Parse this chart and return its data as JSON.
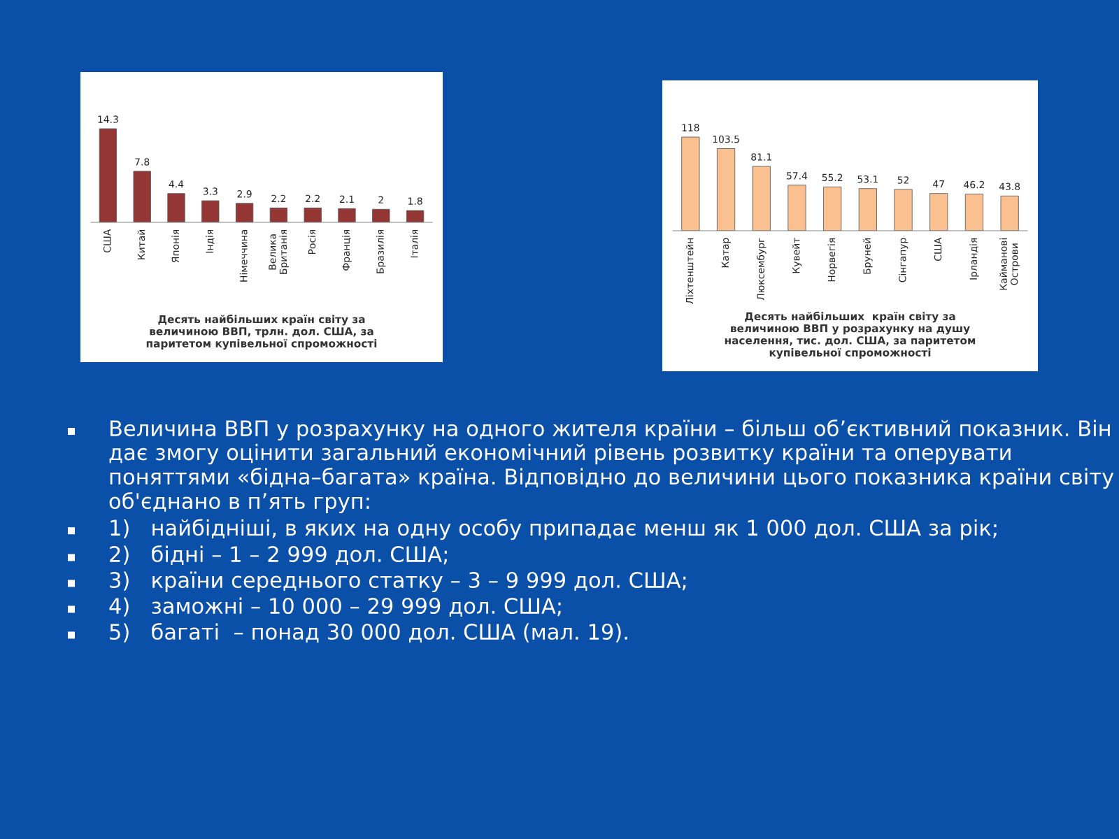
{
  "chart_data": [
    {
      "type": "bar",
      "title": "Десять найбільших країн світу за\nвеличиною ВВП, трлн. дол. США, за\nпаритетом купівельної спроможності",
      "categories": [
        "США",
        "Китай",
        "Японія",
        "Індія",
        "Німеччина",
        "Велика\nБританія",
        "Росія",
        "Франція",
        "Бразилія",
        "Італія"
      ],
      "values": [
        14.3,
        7.8,
        4.4,
        3.3,
        2.9,
        2.2,
        2.2,
        2.1,
        2,
        1.8
      ],
      "color": "#943634",
      "data_labels": true
    },
    {
      "type": "bar",
      "title": "Десять найбільших  країн світу за\nвеличиною ВВП у розрахунку на душу\nнаселення, тис. дол. США, за паритетом\nкупівельної спроможності",
      "categories": [
        "Ліхтенштейн",
        "Катар",
        "Люксембург",
        "Кувейт",
        "Норвегія",
        "Бруней",
        "Сінгапур",
        "США",
        "Ірландія",
        "Кайманові\nОстрови"
      ],
      "values": [
        118,
        103.5,
        81.1,
        57.4,
        55.2,
        53.1,
        52,
        47,
        46.2,
        43.8
      ],
      "color": "#fac090",
      "data_labels": true
    },
    {
      "type": "other",
      "annotations": [
        "Величина ВВП у розрахунку на одного жителя країни – більш об’єктивний показник. Він дає змогу оцінити загальний економічний рівень розвитку країни та оперувати поняттями «бідна–багата» країна. Відповідно до величини цього показника країни світу об'єднано в п’ять груп:",
        "1)   найбідніші, в яких на одну особу припадає менш як 1 000 дол. США за рік;",
        "2)   бідні – 1 – 2 999 дол. США;",
        "3)   країни середнього статку – 3 – 9 999 дол. США;",
        "4)   заможні – 10 000 – 29 999 дол. США;",
        "5)   багаті  – понад 30 000 дол. США (мал. 19)."
      ]
    }
  ]
}
